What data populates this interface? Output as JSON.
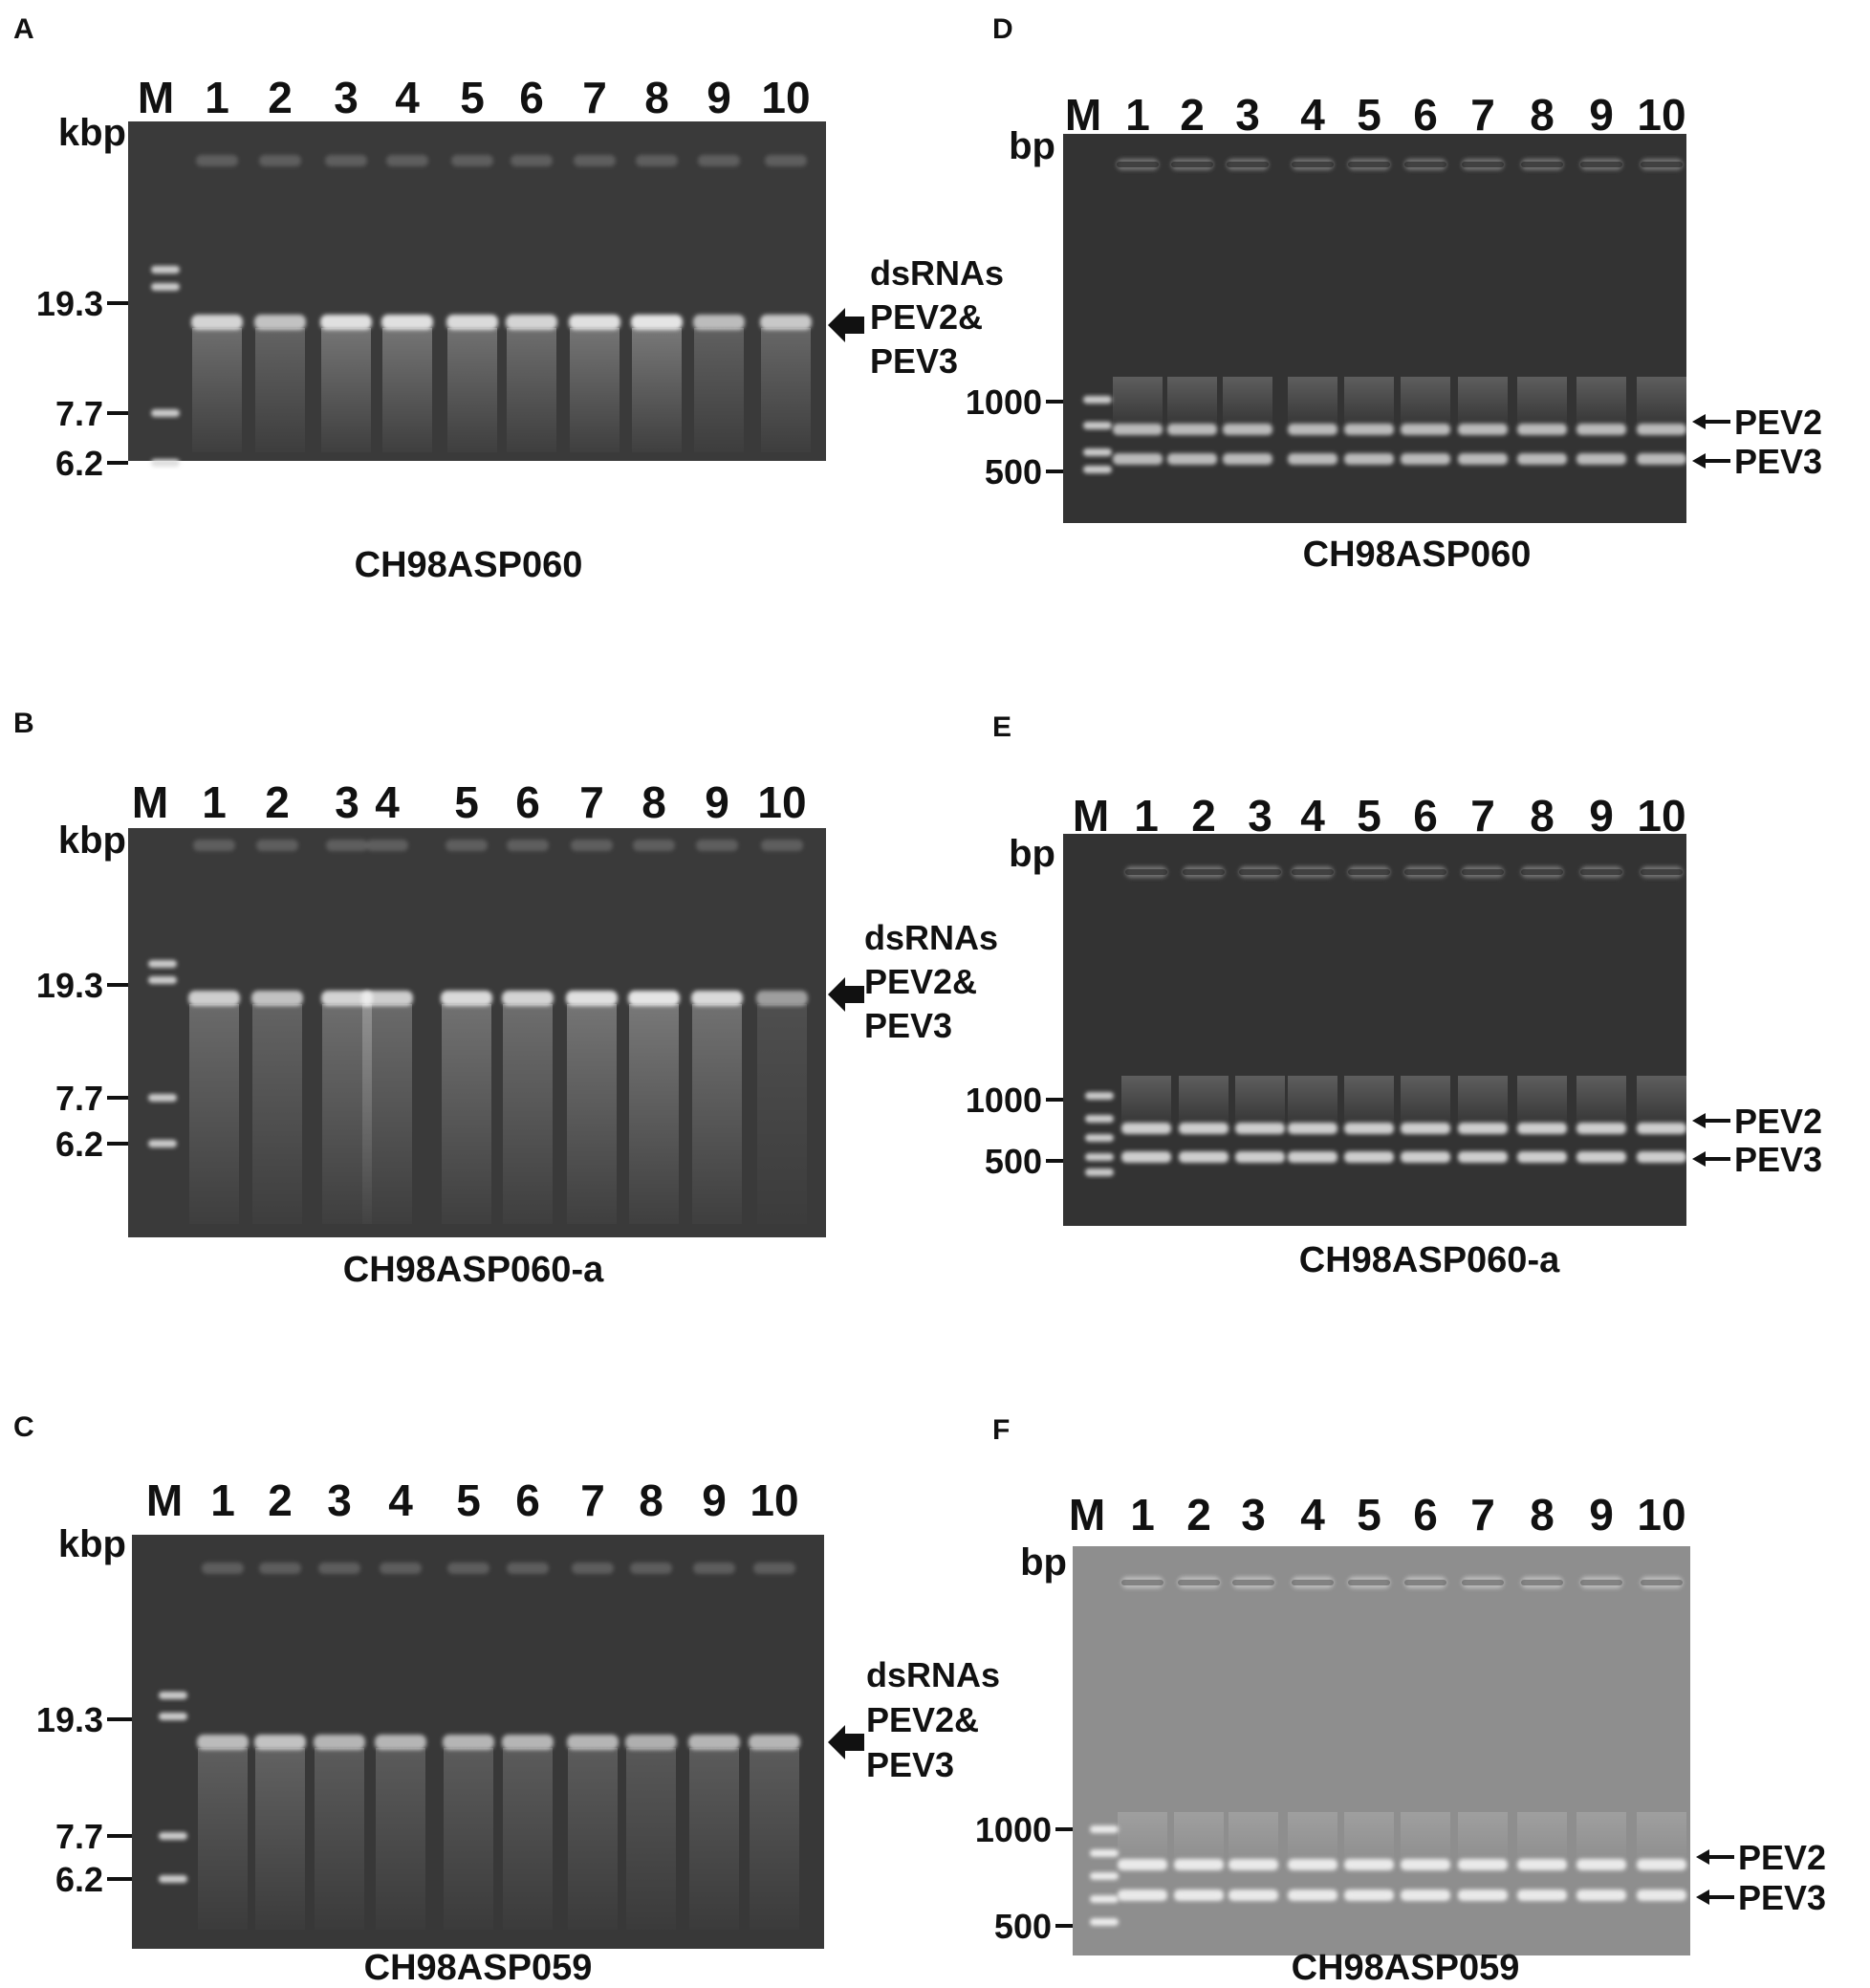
{
  "lane_labels": [
    "M",
    "1",
    "2",
    "3",
    "4",
    "5",
    "6",
    "7",
    "8",
    "9",
    "10"
  ],
  "panels": {
    "A": {
      "letter": "A",
      "unit": "kbp",
      "caption": "CH98ASP060",
      "marker_ticks": [
        "19.3",
        "7.7",
        "6.2"
      ],
      "annotation_lines": [
        "dsRNAs",
        "PEV2&",
        "PEV3"
      ],
      "lane_band_intensity": [
        0.75,
        0.6,
        0.85,
        0.85,
        0.8,
        0.75,
        0.85,
        0.9,
        0.55,
        0.65
      ]
    },
    "B": {
      "letter": "B",
      "unit": "kbp",
      "caption": "CH98ASP060-a",
      "marker_ticks": [
        "19.3",
        "7.7",
        "6.2"
      ],
      "annotation_lines": [
        "dsRNAs",
        "PEV2&",
        "PEV3"
      ],
      "lane_band_intensity": [
        0.7,
        0.6,
        0.75,
        0.7,
        0.8,
        0.75,
        0.85,
        0.9,
        0.8,
        0.3
      ]
    },
    "C": {
      "letter": "C",
      "unit": "kbp",
      "caption": "CH98ASP059",
      "marker_ticks": [
        "19.3",
        "7.7",
        "6.2"
      ],
      "annotation_lines": [
        "dsRNAs",
        "PEV2&",
        "PEV3"
      ],
      "lane_band_intensity": [
        0.55,
        0.6,
        0.5,
        0.5,
        0.5,
        0.5,
        0.5,
        0.45,
        0.5,
        0.5
      ]
    },
    "D": {
      "letter": "D",
      "unit": "bp",
      "caption": "CH98ASP060",
      "marker_ticks": [
        "1000",
        "500"
      ],
      "band_labels": [
        "PEV2",
        "PEV3"
      ],
      "lane_band_intensity": [
        0.7,
        0.7,
        0.7,
        0.7,
        0.7,
        0.7,
        0.7,
        0.7,
        0.7,
        0.7
      ]
    },
    "E": {
      "letter": "E",
      "unit": "bp",
      "caption": "CH98ASP060-a",
      "marker_ticks": [
        "1000",
        "500"
      ],
      "band_labels": [
        "PEV2",
        "PEV3"
      ],
      "lane_band_intensity": [
        0.8,
        0.8,
        0.8,
        0.8,
        0.8,
        0.8,
        0.8,
        0.8,
        0.8,
        0.8
      ]
    },
    "F": {
      "letter": "F",
      "unit": "bp",
      "caption": "CH98ASP059",
      "marker_ticks": [
        "1000",
        "500"
      ],
      "band_labels": [
        "PEV2",
        "PEV3"
      ],
      "lane_band_intensity": [
        0.9,
        0.9,
        0.9,
        0.9,
        0.9,
        0.9,
        0.9,
        0.9,
        0.9,
        0.9
      ]
    }
  },
  "colors": {
    "gel_dark": "#3a3a3a",
    "gel_light": "#8e8e8e",
    "band": "#f2f2f2",
    "text": "#111111"
  }
}
